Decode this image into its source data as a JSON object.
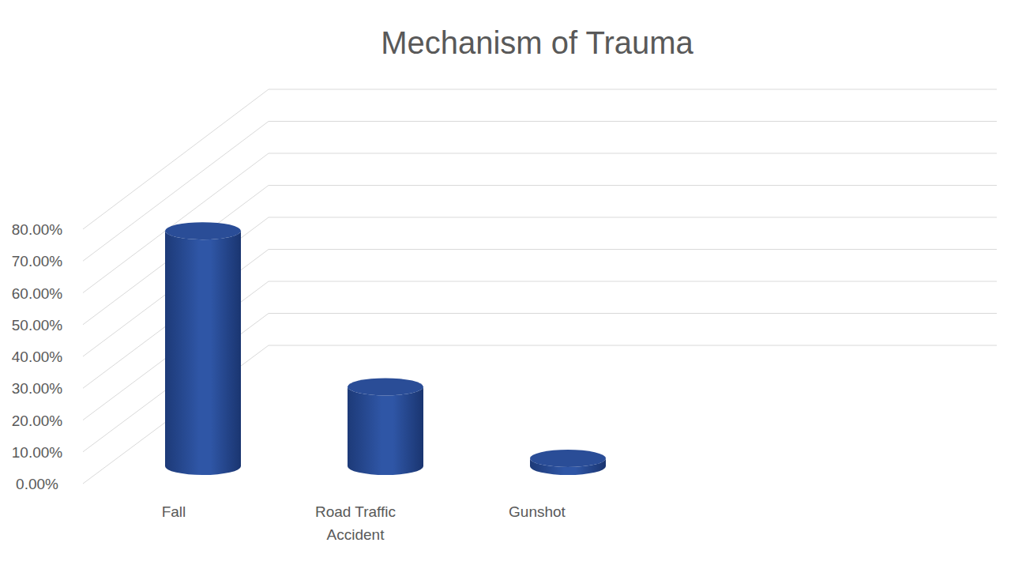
{
  "chart_data": {
    "type": "bar",
    "title": "Mechanism of Trauma",
    "categories": [
      "Fall",
      "Road Traffic Accident",
      "Gunshot"
    ],
    "values": [
      74,
      25,
      2.5
    ],
    "color": "#2f56a6",
    "ylim": [
      0,
      80
    ],
    "yticks": [
      {
        "value": 0,
        "label": "0.00%"
      },
      {
        "value": 10,
        "label": "10.00%"
      },
      {
        "value": 20,
        "label": "20.00%"
      },
      {
        "value": 30,
        "label": "30.00%"
      },
      {
        "value": 40,
        "label": "40.00%"
      },
      {
        "value": 50,
        "label": "50.00%"
      },
      {
        "value": 60,
        "label": "60.00%"
      },
      {
        "value": 70,
        "label": "70.00%"
      },
      {
        "value": 80,
        "label": "80.00%"
      }
    ],
    "grid": true
  }
}
